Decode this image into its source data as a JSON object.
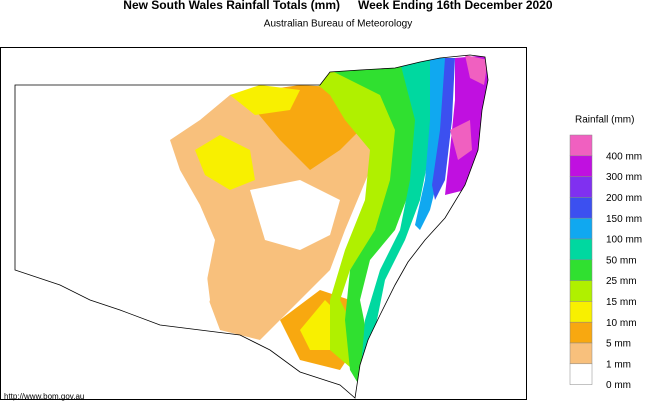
{
  "header": {
    "title": "New South Wales Rainfall Totals (mm)",
    "period": "Week Ending 16th December 2020",
    "subtitle": "Australian Bureau of Meteorology"
  },
  "legend": {
    "title": "Rainfall (mm)",
    "items": [
      {
        "label": "400 mm",
        "color": "#f060c0"
      },
      {
        "label": "300 mm",
        "color": "#c010e0"
      },
      {
        "label": "200 mm",
        "color": "#8030f0"
      },
      {
        "label": "150 mm",
        "color": "#3c50f0"
      },
      {
        "label": "100 mm",
        "color": "#10a8f0"
      },
      {
        "label": "50 mm",
        "color": "#00d8a0"
      },
      {
        "label": "25 mm",
        "color": "#30e030"
      },
      {
        "label": "15 mm",
        "color": "#b0f000"
      },
      {
        "label": "10 mm",
        "color": "#f8f000"
      },
      {
        "label": "5 mm",
        "color": "#f8a810"
      },
      {
        "label": "1 mm",
        "color": "#f8c07c"
      },
      {
        "label": "0 mm",
        "color": "#ffffff"
      }
    ]
  },
  "footer": {
    "url": "http://www.bom.gov.au"
  }
}
